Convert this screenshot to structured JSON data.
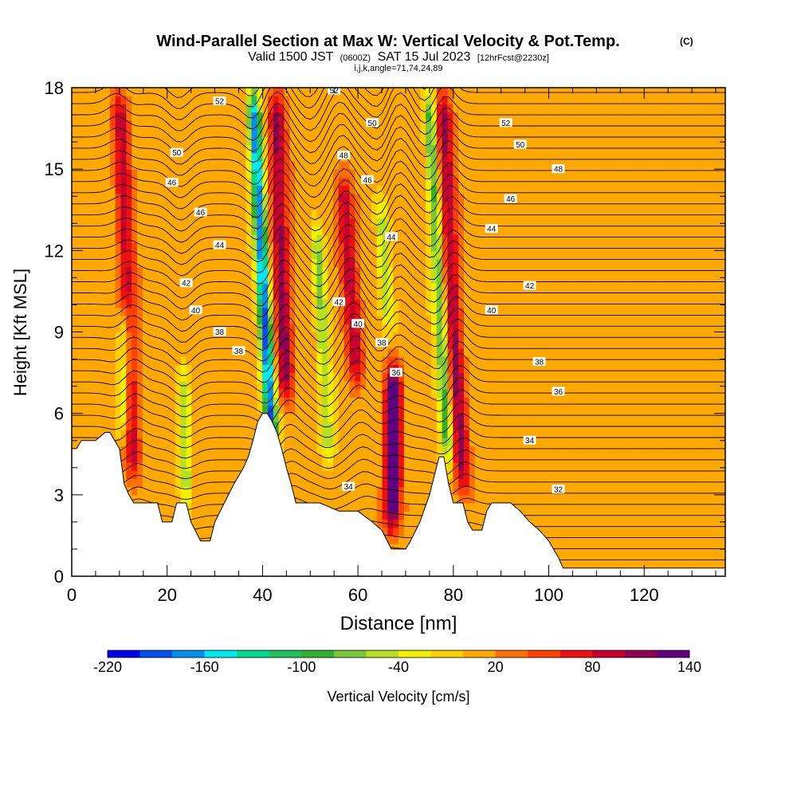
{
  "title": {
    "main": "Wind-Parallel Section at Max W: Vertical Velocity & Pot.Temp.",
    "mark": "(C)",
    "valid_pre": "Valid 1500 JST",
    "valid_small1": "(0600Z)",
    "valid_mid": "SAT 15 Jul 2023",
    "valid_small2": "[12hrFcst@2230z]",
    "indices": "i,j,k,angle=71,74,24,89"
  },
  "chart_data": {
    "type": "heatmap",
    "xlabel": "Distance [nm]",
    "ylabel": "Height [Kft MSL]",
    "xlim": [
      0,
      137
    ],
    "ylim": [
      0,
      18
    ],
    "x_ticks": [
      0,
      20,
      40,
      60,
      80,
      100,
      120
    ],
    "y_ticks": [
      0,
      3,
      6,
      9,
      12,
      15,
      18
    ],
    "colorbar": {
      "label": "Vertical Velocity [cm/s]",
      "range": [
        -220,
        140
      ],
      "tick_labels": [
        "-220",
        "-160",
        "-100",
        "-40",
        "20",
        "80",
        "140"
      ],
      "colors": [
        "#0000ee",
        "#0050f0",
        "#0090f0",
        "#00e8f0",
        "#00d890",
        "#20c060",
        "#30b030",
        "#78c838",
        "#b8e020",
        "#f0f000",
        "#ffd000",
        "#ffa800",
        "#ff7000",
        "#ff4000",
        "#ee1010",
        "#c80030",
        "#900050",
        "#600080"
      ]
    },
    "terrain": [
      [
        0,
        4.7
      ],
      [
        1,
        4.7
      ],
      [
        2,
        5
      ],
      [
        3,
        5
      ],
      [
        5,
        5
      ],
      [
        7,
        5.3
      ],
      [
        8,
        5.3
      ],
      [
        9,
        5
      ],
      [
        10,
        4.7
      ],
      [
        11,
        3.4
      ],
      [
        12,
        3
      ],
      [
        13,
        2.7
      ],
      [
        16,
        2.7
      ],
      [
        18,
        2.7
      ],
      [
        19,
        2
      ],
      [
        21,
        2
      ],
      [
        22,
        2.7
      ],
      [
        24,
        2.7
      ],
      [
        25,
        2
      ],
      [
        27,
        1.3
      ],
      [
        29,
        1.3
      ],
      [
        30,
        2
      ],
      [
        32,
        2.7
      ],
      [
        34,
        3.4
      ],
      [
        36,
        4
      ],
      [
        37,
        4.4
      ],
      [
        38,
        5
      ],
      [
        39,
        5.7
      ],
      [
        40,
        6
      ],
      [
        41,
        6
      ],
      [
        42,
        5.7
      ],
      [
        43,
        5.3
      ],
      [
        44,
        4.7
      ],
      [
        45,
        4
      ],
      [
        46,
        3.4
      ],
      [
        47,
        2.7
      ],
      [
        48,
        2.7
      ],
      [
        52,
        2.7
      ],
      [
        56,
        2.4
      ],
      [
        60,
        2.4
      ],
      [
        63,
        2
      ],
      [
        65,
        1.7
      ],
      [
        67,
        1
      ],
      [
        70,
        1
      ],
      [
        71,
        1.3
      ],
      [
        73,
        2
      ],
      [
        75,
        3
      ],
      [
        76,
        3.7
      ],
      [
        77,
        4.4
      ],
      [
        78,
        4.4
      ],
      [
        79,
        3.4
      ],
      [
        80,
        2.7
      ],
      [
        82,
        2.7
      ],
      [
        83,
        2
      ],
      [
        84,
        1.7
      ],
      [
        86,
        1.7
      ],
      [
        87,
        2.4
      ],
      [
        88,
        2.7
      ],
      [
        92,
        2.7
      ],
      [
        94,
        2.4
      ],
      [
        96,
        2
      ],
      [
        98,
        1.7
      ],
      [
        100,
        1.3
      ],
      [
        102,
        0.7
      ],
      [
        103,
        0.3
      ],
      [
        137,
        0.3
      ]
    ],
    "theta_contours": [
      {
        "label": "32",
        "label_pos": [
          102,
          3.2
        ]
      },
      {
        "label": "34",
        "label_pos": [
          58,
          3.3
        ]
      },
      {
        "label": "34",
        "label_pos": [
          96,
          5
        ]
      },
      {
        "label": "36",
        "label_pos": [
          68,
          7.5
        ]
      },
      {
        "label": "36",
        "label_pos": [
          102,
          6.8
        ]
      },
      {
        "label": "38",
        "label_pos": [
          35,
          8.3
        ]
      },
      {
        "label": "38",
        "label_pos": [
          65,
          8.6
        ]
      },
      {
        "label": "38",
        "label_pos": [
          98,
          7.9
        ]
      },
      {
        "label": "38",
        "label_pos": [
          31,
          9
        ]
      },
      {
        "label": "40",
        "label_pos": [
          26,
          9.8
        ]
      },
      {
        "label": "40",
        "label_pos": [
          60,
          9.3
        ]
      },
      {
        "label": "40",
        "label_pos": [
          88,
          9.8
        ]
      },
      {
        "label": "42",
        "label_pos": [
          24,
          10.8
        ]
      },
      {
        "label": "42",
        "label_pos": [
          56,
          10.1
        ]
      },
      {
        "label": "42",
        "label_pos": [
          96,
          10.7
        ]
      },
      {
        "label": "44",
        "label_pos": [
          31,
          12.2
        ]
      },
      {
        "label": "44",
        "label_pos": [
          67,
          12.5
        ]
      },
      {
        "label": "44",
        "label_pos": [
          88,
          12.8
        ]
      },
      {
        "label": "46",
        "label_pos": [
          27,
          13.4
        ]
      },
      {
        "label": "46",
        "label_pos": [
          21,
          14.5
        ]
      },
      {
        "label": "46",
        "label_pos": [
          62,
          14.6
        ]
      },
      {
        "label": "46",
        "label_pos": [
          92,
          13.9
        ]
      },
      {
        "label": "48",
        "label_pos": [
          57,
          15.5
        ]
      },
      {
        "label": "48",
        "label_pos": [
          102,
          15
        ]
      },
      {
        "label": "50",
        "label_pos": [
          22,
          15.6
        ]
      },
      {
        "label": "50",
        "label_pos": [
          63,
          16.7
        ]
      },
      {
        "label": "50",
        "label_pos": [
          94,
          15.9
        ]
      },
      {
        "label": "52",
        "label_pos": [
          31,
          17.5
        ]
      },
      {
        "label": "52",
        "label_pos": [
          55,
          17.9
        ]
      },
      {
        "label": "52",
        "label_pos": [
          91,
          16.7
        ]
      }
    ],
    "w_cores": [
      {
        "kind": "up",
        "x": 13,
        "top": 18,
        "bottom": 3.5,
        "tilt": 2,
        "amp": 80
      },
      {
        "kind": "up",
        "x": 45,
        "top": 18,
        "bottom": 6.5,
        "tilt": 2,
        "amp": 100
      },
      {
        "kind": "up",
        "x": 60,
        "top": 15,
        "bottom": 7,
        "tilt": 4,
        "amp": 90
      },
      {
        "kind": "up",
        "x": 67,
        "top": 8,
        "bottom": 1.5,
        "tilt": -1,
        "amp": 140
      },
      {
        "kind": "up",
        "x": 82,
        "top": 18,
        "bottom": 3,
        "tilt": 3,
        "amp": 95
      },
      {
        "kind": "down",
        "x": 42,
        "top": 18,
        "bottom": 4.5,
        "tilt": 3,
        "amp": -190
      },
      {
        "kind": "down",
        "x": 11,
        "top": 10,
        "bottom": 5,
        "tilt": 0,
        "amp": -80
      },
      {
        "kind": "down",
        "x": 54,
        "top": 13,
        "bottom": 4,
        "tilt": 3,
        "amp": -70
      },
      {
        "kind": "down",
        "x": 66,
        "top": 14,
        "bottom": 9,
        "tilt": 2,
        "amp": -60
      },
      {
        "kind": "down",
        "x": 79,
        "top": 18,
        "bottom": 4,
        "tilt": 3,
        "amp": -100
      },
      {
        "kind": "down",
        "x": 24,
        "top": 8,
        "bottom": 2.5,
        "tilt": 1,
        "amp": -60
      }
    ]
  }
}
